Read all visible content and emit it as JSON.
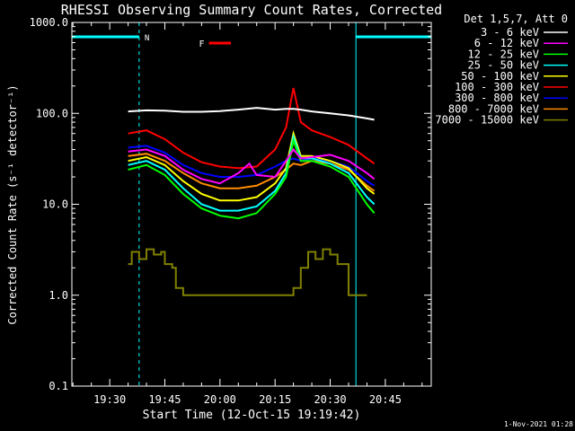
{
  "chart_data": {
    "type": "line",
    "title": "RHESSI Observing Summary Count Rates, Corrected",
    "xlabel": "Start Time (12-Oct-15 19:19:42)",
    "ylabel": "Corrected Count Rate (s⁻¹ detector⁻¹)",
    "y_scale": "log",
    "ylim": [
      0.1,
      1000.0
    ],
    "xlim": [
      "19:19:42",
      "20:57:30"
    ],
    "x_ticks": [
      "19:30",
      "19:45",
      "20:00",
      "20:15",
      "20:30",
      "20:45"
    ],
    "y_ticks": [
      "0.1",
      "1.0",
      "10.0",
      "100.0",
      "1000.0"
    ],
    "legend_title": "Det 1,5,7, Att 0",
    "legend_position": "outside-right",
    "footer": "1-Nov-2021 01:28",
    "annotations": {
      "night_label": "N",
      "flare_label": "F",
      "night_intervals": [
        [
          "19:19:42",
          "19:38:00"
        ],
        [
          "20:37:00",
          "20:57:30"
        ]
      ],
      "flare_interval": [
        "19:57:00",
        "20:03:00"
      ]
    },
    "series": [
      {
        "name": "3 - 6 keV",
        "color": "#ffffff",
        "x": [
          "19:35",
          "19:40",
          "19:45",
          "19:50",
          "19:55",
          "20:00",
          "20:05",
          "20:10",
          "20:15",
          "20:18",
          "20:20",
          "20:22",
          "20:25",
          "20:30",
          "20:35",
          "20:40",
          "20:42"
        ],
        "y": [
          105,
          108,
          107,
          104,
          104,
          106,
          110,
          115,
          110,
          112,
          112,
          110,
          105,
          100,
          95,
          88,
          85
        ]
      },
      {
        "name": "6 - 12 keV",
        "color": "#ff00ff",
        "x": [
          "19:35",
          "19:40",
          "19:45",
          "19:50",
          "19:55",
          "20:00",
          "20:05",
          "20:08",
          "20:10",
          "20:15",
          "20:18",
          "20:20",
          "20:22",
          "20:25",
          "20:30",
          "20:35",
          "20:40",
          "20:42"
        ],
        "y": [
          38,
          40,
          34,
          24,
          19,
          17,
          22,
          28,
          21,
          20,
          30,
          40,
          32,
          33,
          35,
          30,
          22,
          19
        ]
      },
      {
        "name": "12 - 25 keV",
        "color": "#00ff00",
        "x": [
          "19:35",
          "19:40",
          "19:45",
          "19:50",
          "19:55",
          "20:00",
          "20:05",
          "20:10",
          "20:15",
          "20:18",
          "20:20",
          "20:22",
          "20:25",
          "20:30",
          "20:35",
          "20:40",
          "20:42"
        ],
        "y": [
          24,
          27,
          21,
          13,
          9,
          7.5,
          7.0,
          8,
          13,
          20,
          50,
          30,
          30,
          26,
          20,
          10,
          8
        ]
      },
      {
        "name": "25 - 50 keV",
        "color": "#00ffff",
        "x": [
          "19:35",
          "19:40",
          "19:45",
          "19:50",
          "19:55",
          "20:00",
          "20:05",
          "20:10",
          "20:15",
          "20:18",
          "20:20",
          "20:22",
          "20:25",
          "20:30",
          "20:35",
          "20:40",
          "20:42"
        ],
        "y": [
          27,
          30,
          24,
          15,
          10,
          8.5,
          8.5,
          9.5,
          14,
          22,
          55,
          32,
          32,
          28,
          22,
          12,
          10
        ]
      },
      {
        "name": "50 - 100 keV",
        "color": "#ffff00",
        "x": [
          "19:35",
          "19:40",
          "19:45",
          "19:50",
          "19:55",
          "20:00",
          "20:05",
          "20:10",
          "20:15",
          "20:18",
          "20:20",
          "20:22",
          "20:25",
          "20:30",
          "20:35",
          "20:40",
          "20:42"
        ],
        "y": [
          30,
          33,
          27,
          18,
          13,
          11,
          11,
          12,
          17,
          25,
          60,
          34,
          34,
          30,
          25,
          15,
          13
        ]
      },
      {
        "name": "100 - 300 keV",
        "color": "#ff0000",
        "x": [
          "19:35",
          "19:40",
          "19:45",
          "19:50",
          "19:55",
          "20:00",
          "20:05",
          "20:10",
          "20:15",
          "20:18",
          "20:20",
          "20:22",
          "20:25",
          "20:30",
          "20:35",
          "20:40",
          "20:42"
        ],
        "y": [
          60,
          65,
          52,
          37,
          29,
          26,
          25,
          26,
          40,
          70,
          190,
          80,
          65,
          55,
          45,
          32,
          28
        ]
      },
      {
        "name": "300 - 800 keV",
        "color": "#0000ff",
        "x": [
          "19:35",
          "19:40",
          "19:45",
          "19:50",
          "19:55",
          "20:00",
          "20:05",
          "20:10",
          "20:15",
          "20:18",
          "20:20",
          "20:22",
          "20:25",
          "20:30",
          "20:35",
          "20:40",
          "20:42"
        ],
        "y": [
          42,
          44,
          37,
          27,
          22,
          20,
          20,
          21,
          26,
          30,
          32,
          30,
          32,
          30,
          26,
          18,
          16
        ]
      },
      {
        "name": "800 - 7000 keV",
        "color": "#ff8c00",
        "x": [
          "19:35",
          "19:40",
          "19:45",
          "19:50",
          "19:55",
          "20:00",
          "20:05",
          "20:10",
          "20:15",
          "20:18",
          "20:20",
          "20:22",
          "20:25",
          "20:30",
          "20:35",
          "20:40",
          "20:42"
        ],
        "y": [
          34,
          36,
          30,
          22,
          17,
          15,
          15,
          16,
          20,
          24,
          28,
          27,
          30,
          28,
          24,
          16,
          14
        ]
      },
      {
        "name": "7000 - 15000 keV",
        "color": "#808000",
        "x": [
          "19:35",
          "19:36",
          "19:38",
          "19:40",
          "19:42",
          "19:44",
          "19:45",
          "19:47",
          "19:48",
          "19:50",
          "19:55",
          "20:00",
          "20:05",
          "20:10",
          "20:15",
          "20:20",
          "20:22",
          "20:24",
          "20:26",
          "20:28",
          "20:30",
          "20:32",
          "20:35",
          "20:40"
        ],
        "y": [
          2.2,
          3.0,
          2.5,
          3.2,
          2.8,
          3.0,
          2.2,
          2.0,
          1.2,
          1.0,
          1.0,
          1.0,
          1.0,
          1.0,
          1.0,
          1.2,
          2.0,
          3.0,
          2.5,
          3.2,
          2.8,
          2.2,
          1.0,
          1.0
        ]
      }
    ]
  }
}
